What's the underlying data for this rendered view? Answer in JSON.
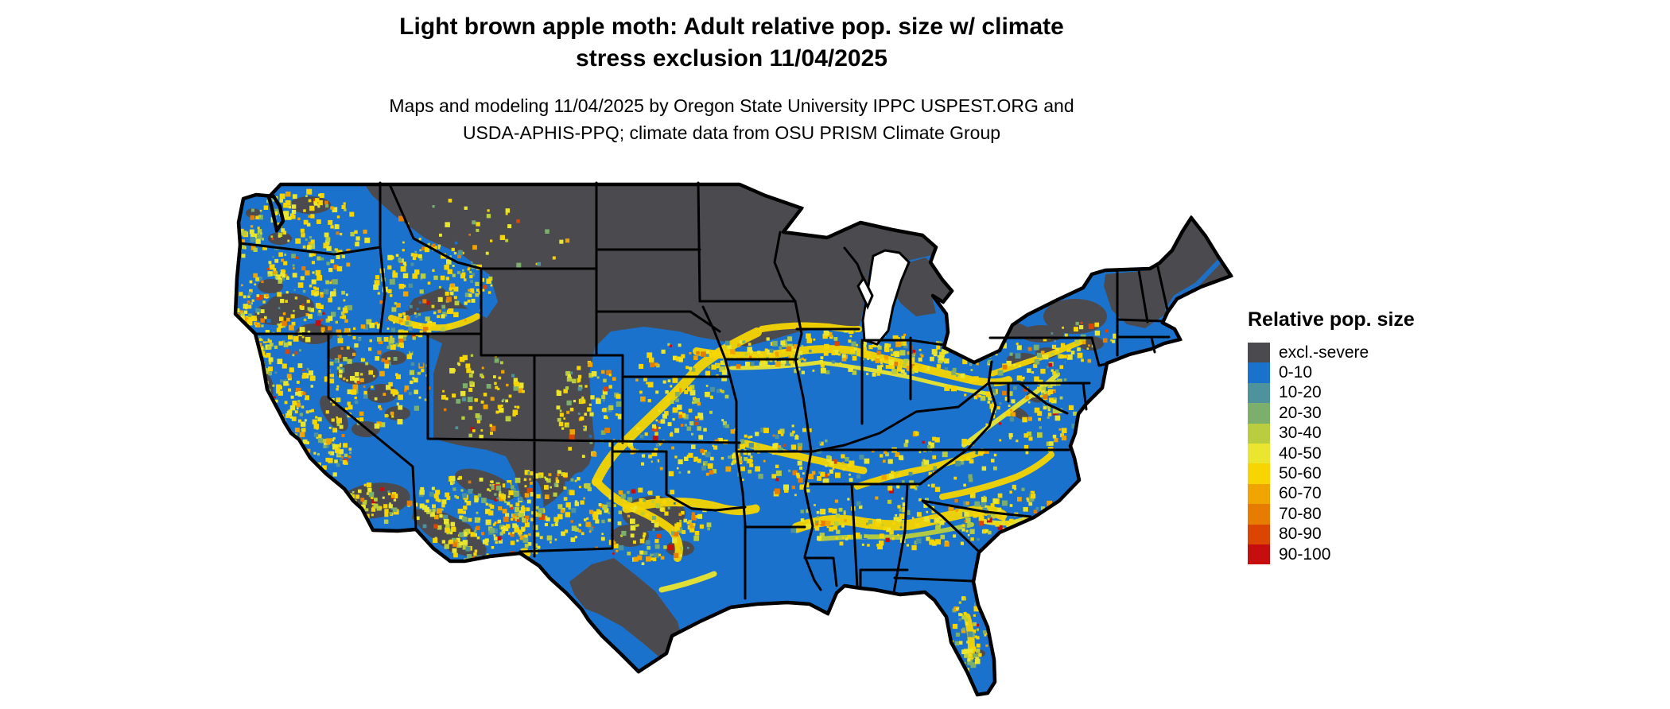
{
  "page": {
    "background": "#FFFFFF"
  },
  "title": {
    "line1": "Light brown apple moth: Adult relative pop. size w/ climate",
    "line2": "stress exclusion 11/04/2025"
  },
  "subtitle": {
    "line1": "Maps and modeling 11/04/2025 by Oregon State University IPPC USPEST.ORG and",
    "line2": "USDA-APHIS-PPQ; climate data from OSU PRISM Climate Group"
  },
  "map": {
    "region": "Contiguous United States",
    "colors": {
      "water": "#FFFFFF",
      "state_border": "#000000"
    }
  },
  "legend": {
    "title": "Relative pop. size",
    "items": [
      {
        "label": "excl.-severe",
        "color": "#4B4B4F"
      },
      {
        "label": "0-10",
        "color": "#1B72CC"
      },
      {
        "label": "10-20",
        "color": "#4E929B"
      },
      {
        "label": "20-30",
        "color": "#7CAF6B"
      },
      {
        "label": "30-40",
        "color": "#BACD3E"
      },
      {
        "label": "40-50",
        "color": "#EAE52F"
      },
      {
        "label": "50-60",
        "color": "#F6D500"
      },
      {
        "label": "60-70",
        "color": "#F0A400"
      },
      {
        "label": "70-80",
        "color": "#E67C00"
      },
      {
        "label": "80-90",
        "color": "#DB4500"
      },
      {
        "label": "90-100",
        "color": "#C70E0E"
      }
    ]
  }
}
